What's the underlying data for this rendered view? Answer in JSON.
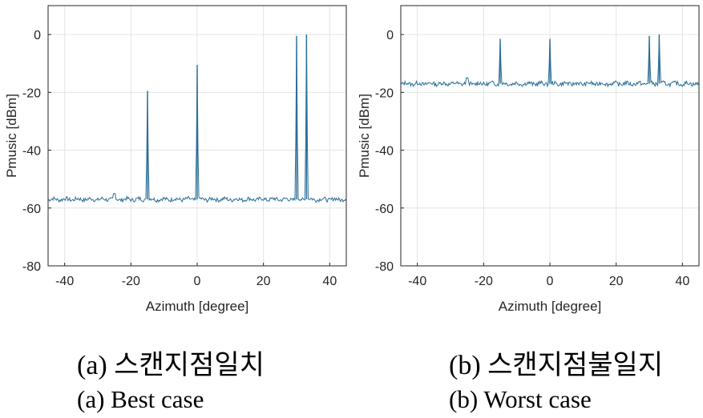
{
  "chart_data": [
    {
      "type": "line",
      "panel": "a",
      "xlabel": "Azimuth [degree]",
      "ylabel": "Pmusic [dBm]",
      "xlim": [
        -45,
        45
      ],
      "ylim": [
        -80,
        10
      ],
      "xticks": [
        -40,
        -20,
        0,
        20,
        40
      ],
      "yticks": [
        0,
        -20,
        -40,
        -60,
        -80
      ],
      "grid": true,
      "color": "#2a6f97",
      "noise_floor": -57,
      "peaks": [
        {
          "x": -15,
          "y": -19.5
        },
        {
          "x": 0,
          "y": -10.5
        },
        {
          "x": 30,
          "y": -0.5
        },
        {
          "x": 33,
          "y": 0
        }
      ]
    },
    {
      "type": "line",
      "panel": "b",
      "xlabel": "Azimuth [degree]",
      "ylabel": "Pmusic [dBm]",
      "xlim": [
        -45,
        45
      ],
      "ylim": [
        -80,
        10
      ],
      "xticks": [
        -40,
        -20,
        0,
        20,
        40
      ],
      "yticks": [
        0,
        -20,
        -40,
        -60,
        -80
      ],
      "grid": true,
      "color": "#2a6f97",
      "noise_floor": -17,
      "peaks": [
        {
          "x": -15,
          "y": -1.5
        },
        {
          "x": 0,
          "y": -1.5
        },
        {
          "x": 30,
          "y": -0.5
        },
        {
          "x": 33,
          "y": 0
        }
      ]
    }
  ],
  "captions": {
    "a_ko": "(a)  스캔지점일치",
    "a_en": "(a)  Best  case",
    "b_ko": "(b)  스캔지점불일지",
    "b_en": "(b)  Worst  case"
  }
}
